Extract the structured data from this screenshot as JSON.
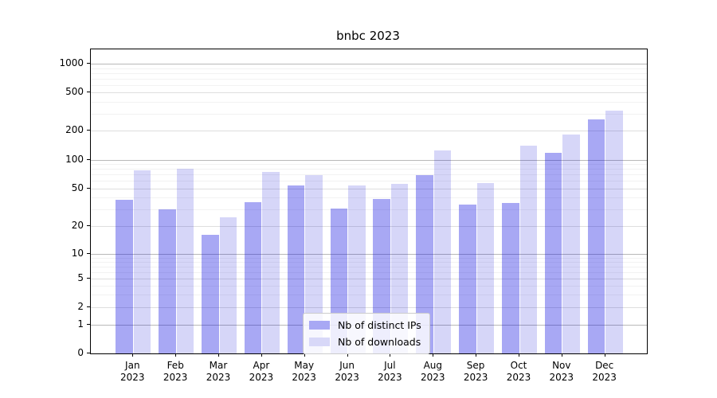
{
  "chart_data": {
    "type": "bar",
    "title": "bnbc 2023",
    "categories": [
      "Jan 2023",
      "Feb 2023",
      "Mar 2023",
      "Apr 2023",
      "May 2023",
      "Jun 2023",
      "Jul 2023",
      "Aug 2023",
      "Sep 2023",
      "Oct 2023",
      "Nov 2023",
      "Dec 2023"
    ],
    "series": [
      {
        "name": "Nb of distinct IPs",
        "color": "#a8a8f4",
        "fill": "rgba(6,6,224,0.35)",
        "values": [
          38,
          30,
          16,
          36,
          54,
          31,
          39,
          69,
          34,
          35,
          118,
          260
        ]
      },
      {
        "name": "Nb of downloads",
        "color": "#d8d8f8",
        "fill": "rgba(3,3,210,0.16)",
        "values": [
          77,
          81,
          25,
          75,
          69,
          54,
          56,
          124,
          57,
          140,
          182,
          322
        ]
      }
    ],
    "yscale": "symlog",
    "yticks": [
      0,
      1,
      2,
      5,
      10,
      20,
      50,
      100,
      200,
      500,
      1000
    ],
    "ylim": [
      0,
      1300
    ],
    "xlabel": "",
    "ylabel": "",
    "grid": true,
    "legend_position": "lower center"
  },
  "colors": {
    "grid_major": "#b8b8b8",
    "grid_medium": "#dedede",
    "grid_minor": "#f2f2f2",
    "axis": "#000000",
    "background": "#ffffff"
  }
}
